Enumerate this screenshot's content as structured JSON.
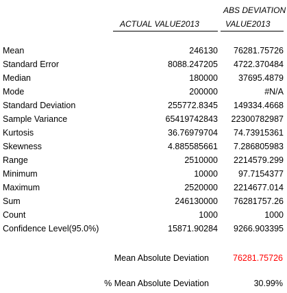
{
  "headers": {
    "actual": "ACTUAL VALUE2013",
    "absdev_line1": "ABS DEVIATION",
    "absdev_line2": "VALUE2013"
  },
  "rows": [
    {
      "label": "Mean",
      "actual": "246130",
      "absdev": "76281.75726"
    },
    {
      "label": "Standard Error",
      "actual": "8088.247205",
      "absdev": "4722.370484"
    },
    {
      "label": "Median",
      "actual": "180000",
      "absdev": "37695.4879"
    },
    {
      "label": "Mode",
      "actual": "200000",
      "absdev": "#N/A"
    },
    {
      "label": "Standard Deviation",
      "actual": "255772.8345",
      "absdev": "149334.4668"
    },
    {
      "label": "Sample Variance",
      "actual": "65419742843",
      "absdev": "22300782987"
    },
    {
      "label": "Kurtosis",
      "actual": "36.76979704",
      "absdev": "74.73915361"
    },
    {
      "label": "Skewness",
      "actual": "4.885585661",
      "absdev": "7.286805983"
    },
    {
      "label": "Range",
      "actual": "2510000",
      "absdev": "2214579.299"
    },
    {
      "label": "Minimum",
      "actual": "10000",
      "absdev": "97.7154377"
    },
    {
      "label": "Maximum",
      "actual": "2520000",
      "absdev": "2214677.014"
    },
    {
      "label": "Sum",
      "actual": "246130000",
      "absdev": "76281757.26"
    },
    {
      "label": "Count",
      "actual": "1000",
      "absdev": "1000"
    },
    {
      "label": "Confidence Level(95.0%)",
      "actual": "15871.90284",
      "absdev": "9266.903395"
    }
  ],
  "summary": {
    "mad_label": "Mean Absolute Deviation",
    "mad_value": "76281.75726",
    "mad_value_color": "#ff0000",
    "pct_label": "% Mean Absolute Deviation",
    "pct_value": "30.99%"
  }
}
